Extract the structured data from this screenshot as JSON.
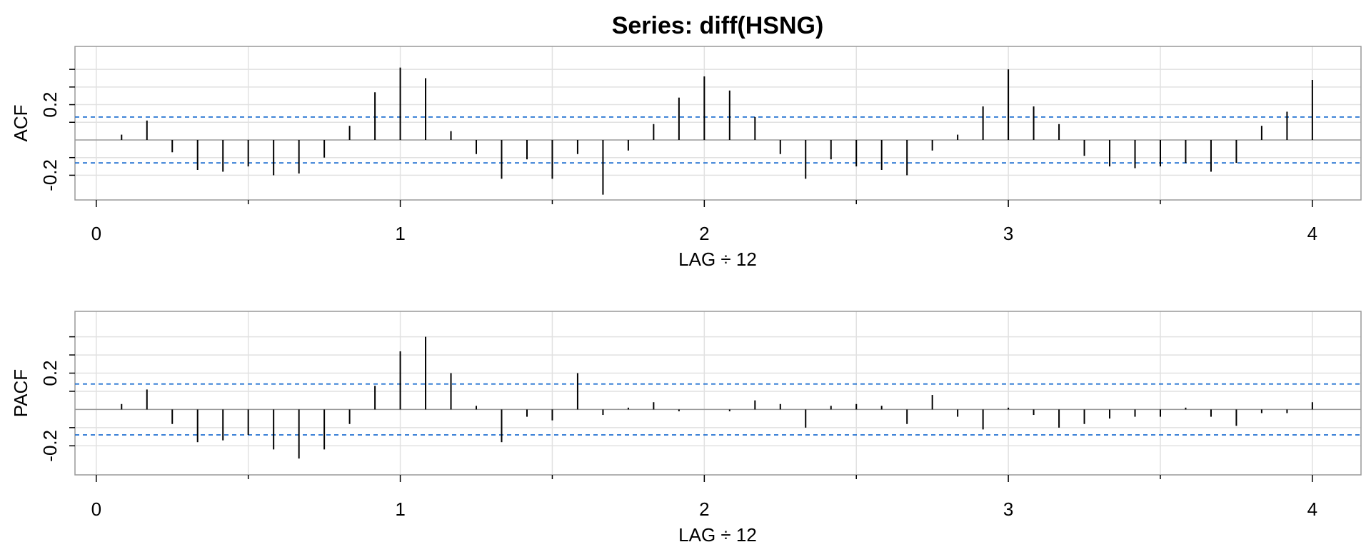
{
  "chart_data": {
    "title": "Series:  diff(HSNG)",
    "colors": {
      "bar": "#000000",
      "ci": "#1f6fd0",
      "grid": "#e1e1e1",
      "frame": "#999999",
      "zero": "#999999"
    },
    "grid": true,
    "panels": [
      {
        "type": "bar",
        "ylabel": "ACF",
        "xlabel": "LAG ÷ 12",
        "x_ticks": [
          "0",
          "1",
          "2",
          "3",
          "4"
        ],
        "y_ticks": [
          "-0.2",
          "0.2"
        ],
        "xlim": [
          -0.07,
          4.16
        ],
        "ylim": [
          -0.34,
          0.53
        ],
        "ci": 0.13,
        "lags": [
          0.0833,
          0.1667,
          0.25,
          0.3333,
          0.4167,
          0.5,
          0.5833,
          0.6667,
          0.75,
          0.8333,
          0.9167,
          1.0,
          1.0833,
          1.1667,
          1.25,
          1.3333,
          1.4167,
          1.5,
          1.5833,
          1.6667,
          1.75,
          1.8333,
          1.9167,
          2.0,
          2.0833,
          2.1667,
          2.25,
          2.3333,
          2.4167,
          2.5,
          2.5833,
          2.6667,
          2.75,
          2.8333,
          2.9167,
          3.0,
          3.0833,
          3.1667,
          3.25,
          3.3333,
          3.4167,
          3.5,
          3.5833,
          3.6667,
          3.75,
          3.8333,
          3.9167,
          4.0
        ],
        "values": [
          0.03,
          0.11,
          -0.07,
          -0.17,
          -0.18,
          -0.15,
          -0.2,
          -0.19,
          -0.1,
          0.08,
          0.27,
          0.41,
          0.35,
          0.05,
          -0.08,
          -0.22,
          -0.11,
          -0.22,
          -0.08,
          -0.31,
          -0.06,
          0.09,
          0.24,
          0.36,
          0.28,
          0.13,
          -0.08,
          -0.22,
          -0.11,
          -0.15,
          -0.17,
          -0.2,
          -0.06,
          0.03,
          0.19,
          0.4,
          0.19,
          0.09,
          -0.09,
          -0.15,
          -0.16,
          -0.15,
          -0.13,
          -0.18,
          -0.13,
          0.08,
          0.16,
          0.34
        ]
      },
      {
        "type": "bar",
        "ylabel": "PACF",
        "xlabel": "LAG ÷ 12",
        "x_ticks": [
          "0",
          "1",
          "2",
          "3",
          "4"
        ],
        "y_ticks": [
          "-0.2",
          "0.2"
        ],
        "xlim": [
          -0.07,
          4.16
        ],
        "ylim": [
          -0.36,
          0.54
        ],
        "ci": 0.14,
        "lags": [
          0.0833,
          0.1667,
          0.25,
          0.3333,
          0.4167,
          0.5,
          0.5833,
          0.6667,
          0.75,
          0.8333,
          0.9167,
          1.0,
          1.0833,
          1.1667,
          1.25,
          1.3333,
          1.4167,
          1.5,
          1.5833,
          1.6667,
          1.75,
          1.8333,
          1.9167,
          2.0,
          2.0833,
          2.1667,
          2.25,
          2.3333,
          2.4167,
          2.5,
          2.5833,
          2.6667,
          2.75,
          2.8333,
          2.9167,
          3.0,
          3.0833,
          3.1667,
          3.25,
          3.3333,
          3.4167,
          3.5,
          3.5833,
          3.6667,
          3.75,
          3.8333,
          3.9167,
          4.0
        ],
        "values": [
          0.03,
          0.11,
          -0.08,
          -0.18,
          -0.17,
          -0.14,
          -0.22,
          -0.27,
          -0.22,
          -0.08,
          0.13,
          0.32,
          0.4,
          0.2,
          0.02,
          -0.18,
          -0.04,
          -0.06,
          0.2,
          -0.03,
          0.01,
          0.04,
          -0.01,
          0.0,
          -0.01,
          0.05,
          0.03,
          -0.1,
          0.02,
          0.03,
          0.02,
          -0.08,
          0.08,
          -0.04,
          -0.11,
          0.01,
          -0.03,
          -0.1,
          -0.08,
          -0.05,
          -0.04,
          -0.04,
          0.01,
          -0.04,
          -0.09,
          -0.02,
          -0.02,
          0.04
        ]
      }
    ]
  }
}
